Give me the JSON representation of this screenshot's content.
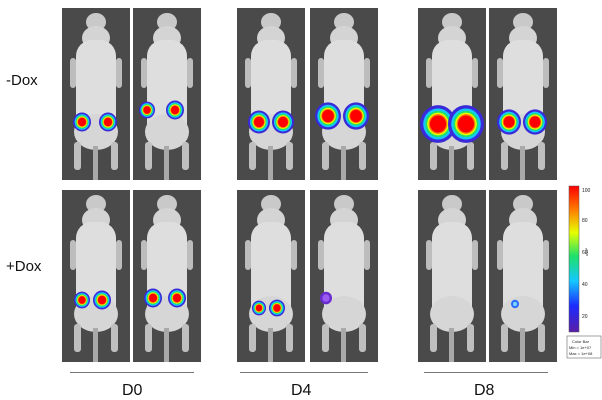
{
  "rows": [
    {
      "label": "-Dox"
    },
    {
      "label": "+Dox"
    }
  ],
  "days": [
    {
      "label": "D0"
    },
    {
      "label": "D4"
    },
    {
      "label": "D8"
    }
  ],
  "scale": {
    "ticks": [
      "100",
      "80",
      "60",
      "40",
      "20"
    ],
    "unit": "x10⁶",
    "legend_title": "Color Bar",
    "min_text": "Min = 1e+07",
    "max_text": "Max = 1e+08"
  }
}
